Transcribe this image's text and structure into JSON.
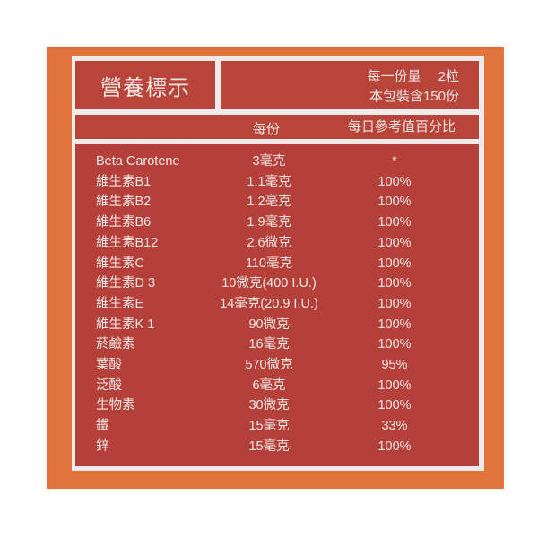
{
  "label": {
    "title": "營養標示",
    "serving_size": "每一份量　 2粒",
    "servings_per_package": "本包裝含150份",
    "col_per_serving": "每份",
    "col_daily_value": "每日參考值百分比",
    "rows": [
      {
        "name": "Beta Carotene",
        "amount": "3毫克",
        "dv": "*"
      },
      {
        "name": "維生素B1",
        "amount": "1.1毫克",
        "dv": "100%"
      },
      {
        "name": "維生素B2",
        "amount": "1.2毫克",
        "dv": "100%"
      },
      {
        "name": "維生素B6",
        "amount": "1.9毫克",
        "dv": "100%"
      },
      {
        "name": "維生素B12",
        "amount": "2.6微克",
        "dv": "100%"
      },
      {
        "name": "維生素C",
        "amount": "110毫克",
        "dv": "100%"
      },
      {
        "name": "維生素D 3",
        "amount": "10微克(400 I.U.)",
        "dv": "100%"
      },
      {
        "name": "維生素E",
        "amount": "14毫克(20.9 I.U.)",
        "dv": "100%"
      },
      {
        "name": "維生素K 1",
        "amount": "90微克",
        "dv": "100%"
      },
      {
        "name": "菸鹼素",
        "amount": "16毫克",
        "dv": "100%"
      },
      {
        "name": "葉酸",
        "amount": "570微克",
        "dv": "95%"
      },
      {
        "name": "泛酸",
        "amount": "6毫克",
        "dv": "100%"
      },
      {
        "name": "生物素",
        "amount": "30微克",
        "dv": "100%"
      },
      {
        "name": "鐵",
        "amount": "15毫克",
        "dv": "33%"
      },
      {
        "name": "鋅",
        "amount": "15毫克",
        "dv": "100%"
      }
    ]
  },
  "colors": {
    "panel": "#e0743a",
    "label_red": "#b8443a",
    "text": "#f2e6e4",
    "border": "#f1eaea"
  }
}
